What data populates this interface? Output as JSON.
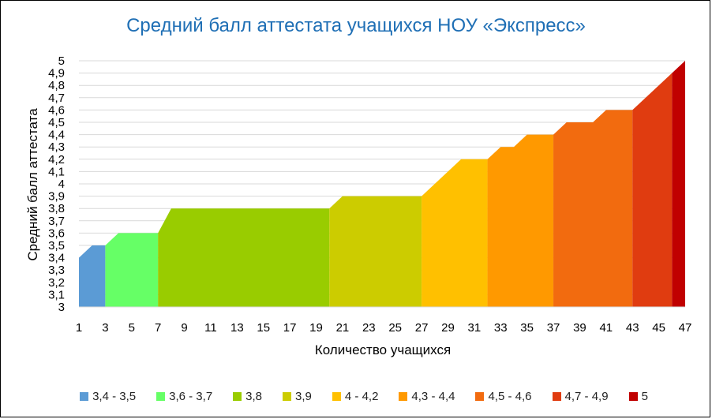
{
  "chart_data": {
    "type": "area",
    "title": "Средний балл аттестата учащихся НОУ «Экспресс»",
    "xlabel": "Количество учащихся",
    "ylabel": "Средний балл аттестата",
    "xlim": [
      1,
      47
    ],
    "ylim": [
      3,
      5
    ],
    "x_ticks": [
      "1",
      "3",
      "5",
      "7",
      "9",
      "11",
      "13",
      "15",
      "17",
      "19",
      "21",
      "23",
      "25",
      "27",
      "29",
      "31",
      "33",
      "35",
      "37",
      "39",
      "41",
      "43",
      "45",
      "47"
    ],
    "y_ticks": [
      "3",
      "3,1",
      "3,2",
      "3,3",
      "3,4",
      "3,5",
      "3,6",
      "3,7",
      "3,8",
      "3,9",
      "4",
      "4,1",
      "4,2",
      "4,3",
      "4,4",
      "4,5",
      "4,6",
      "4,7",
      "4,8",
      "4,9",
      "5"
    ],
    "grid": true,
    "legend_position": "bottom",
    "series": [
      {
        "name": "3,4 - 3,5",
        "color": "#5B9BD5",
        "x": [
          1,
          2,
          3
        ],
        "y": [
          3.4,
          3.5,
          3.5
        ]
      },
      {
        "name": "3,6 - 3,7",
        "color": "#66FF66",
        "x": [
          3,
          4,
          7
        ],
        "y": [
          3.5,
          3.6,
          3.6
        ]
      },
      {
        "name": "3,8",
        "color": "#99CC00",
        "x": [
          7,
          8,
          20
        ],
        "y": [
          3.6,
          3.8,
          3.8
        ]
      },
      {
        "name": "3,9",
        "color": "#CCCC00",
        "x": [
          20,
          21,
          27
        ],
        "y": [
          3.8,
          3.9,
          3.9
        ]
      },
      {
        "name": "4 - 4,2",
        "color": "#FFC000",
        "x": [
          27,
          28,
          30,
          32
        ],
        "y": [
          3.9,
          4.0,
          4.2,
          4.2
        ]
      },
      {
        "name": "4,3 - 4,4",
        "color": "#FF9900",
        "x": [
          32,
          33,
          34,
          35,
          37
        ],
        "y": [
          4.2,
          4.3,
          4.3,
          4.4,
          4.4
        ]
      },
      {
        "name": "4,5 - 4,6",
        "color": "#F26B0F",
        "x": [
          37,
          38,
          40,
          41,
          43
        ],
        "y": [
          4.4,
          4.5,
          4.5,
          4.6,
          4.6
        ]
      },
      {
        "name": "4,7 - 4,9",
        "color": "#E03C10",
        "x": [
          43,
          46
        ],
        "y": [
          4.6,
          4.9
        ]
      },
      {
        "name": "5",
        "color": "#C00000",
        "x": [
          46,
          47
        ],
        "y": [
          4.9,
          5.0
        ]
      }
    ]
  }
}
